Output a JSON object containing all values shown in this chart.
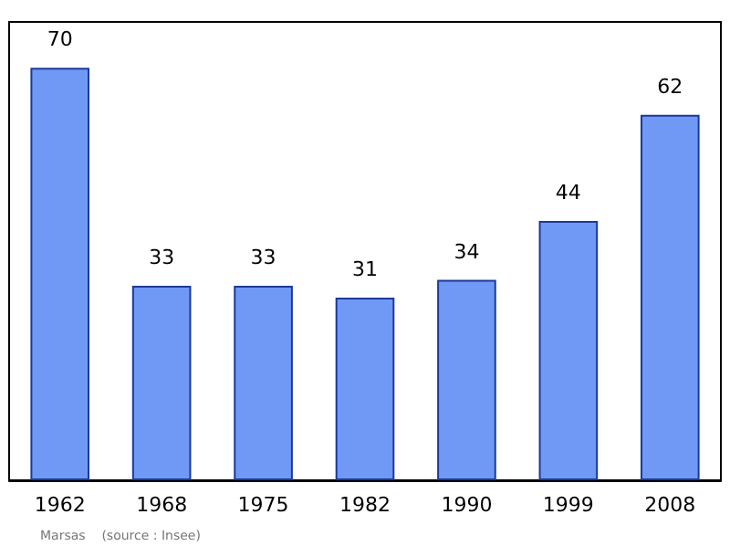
{
  "chart_data": {
    "type": "bar",
    "categories": [
      "1962",
      "1968",
      "1975",
      "1982",
      "1990",
      "1999",
      "2008"
    ],
    "values": [
      70,
      33,
      33,
      31,
      34,
      44,
      62
    ],
    "color": "#7099f5",
    "data_labels": true,
    "grid": false,
    "annotations": [
      "Marsas    (source : Insee)"
    ]
  }
}
